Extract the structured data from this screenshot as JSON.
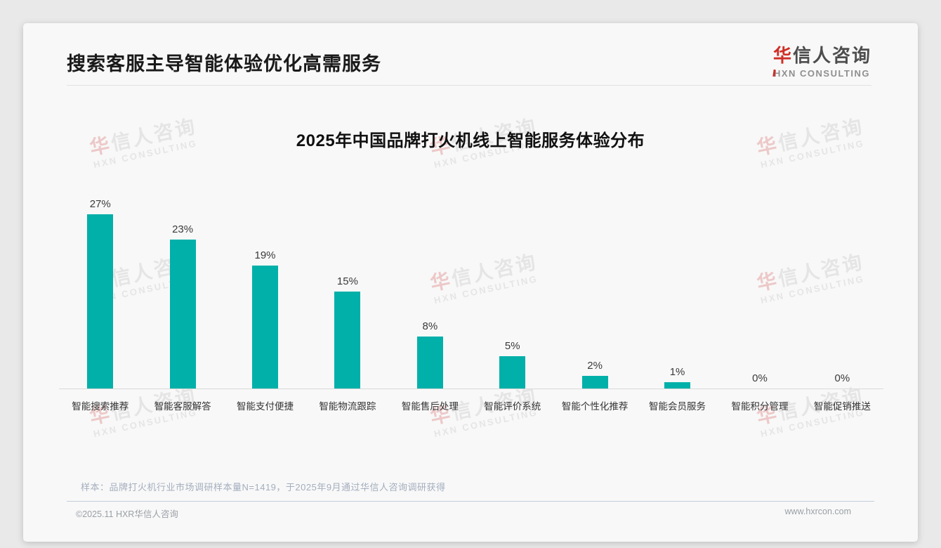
{
  "page": {
    "title": "搜索客服主导智能体验优化高需服务",
    "logo": {
      "brand_first_char": "华",
      "brand_rest": "信人咨询",
      "subtitle": "HXN CONSULTING"
    },
    "watermark": {
      "line1_first_char": "华",
      "line1_rest": "信人咨询",
      "line2": "HXN CONSULTING"
    },
    "footnote": "样本：品牌打火机行业市场调研样本量N=1419，于2025年9月通过华信人咨询调研获得",
    "footer": {
      "left": "©2025.11 HXR华信人咨询",
      "right": "www.hxrcon.com"
    }
  },
  "chart_data": {
    "type": "bar",
    "title": "2025年中国品牌打火机线上智能服务体验分布",
    "categories": [
      "智能搜索推荐",
      "智能客服解答",
      "智能支付便捷",
      "智能物流跟踪",
      "智能售后处理",
      "智能评价系统",
      "智能个性化推荐",
      "智能会员服务",
      "智能积分管理",
      "智能促销推送"
    ],
    "values": [
      27,
      23,
      19,
      15,
      8,
      5,
      2,
      1,
      0,
      0
    ],
    "unit": "%",
    "value_label_format": "{v}%",
    "bar_color": "#00b0a9",
    "xlabel": "",
    "ylabel": "",
    "ylim": [
      0,
      30
    ],
    "grid": false,
    "legend": "none",
    "value_labels_position": "above bars"
  }
}
